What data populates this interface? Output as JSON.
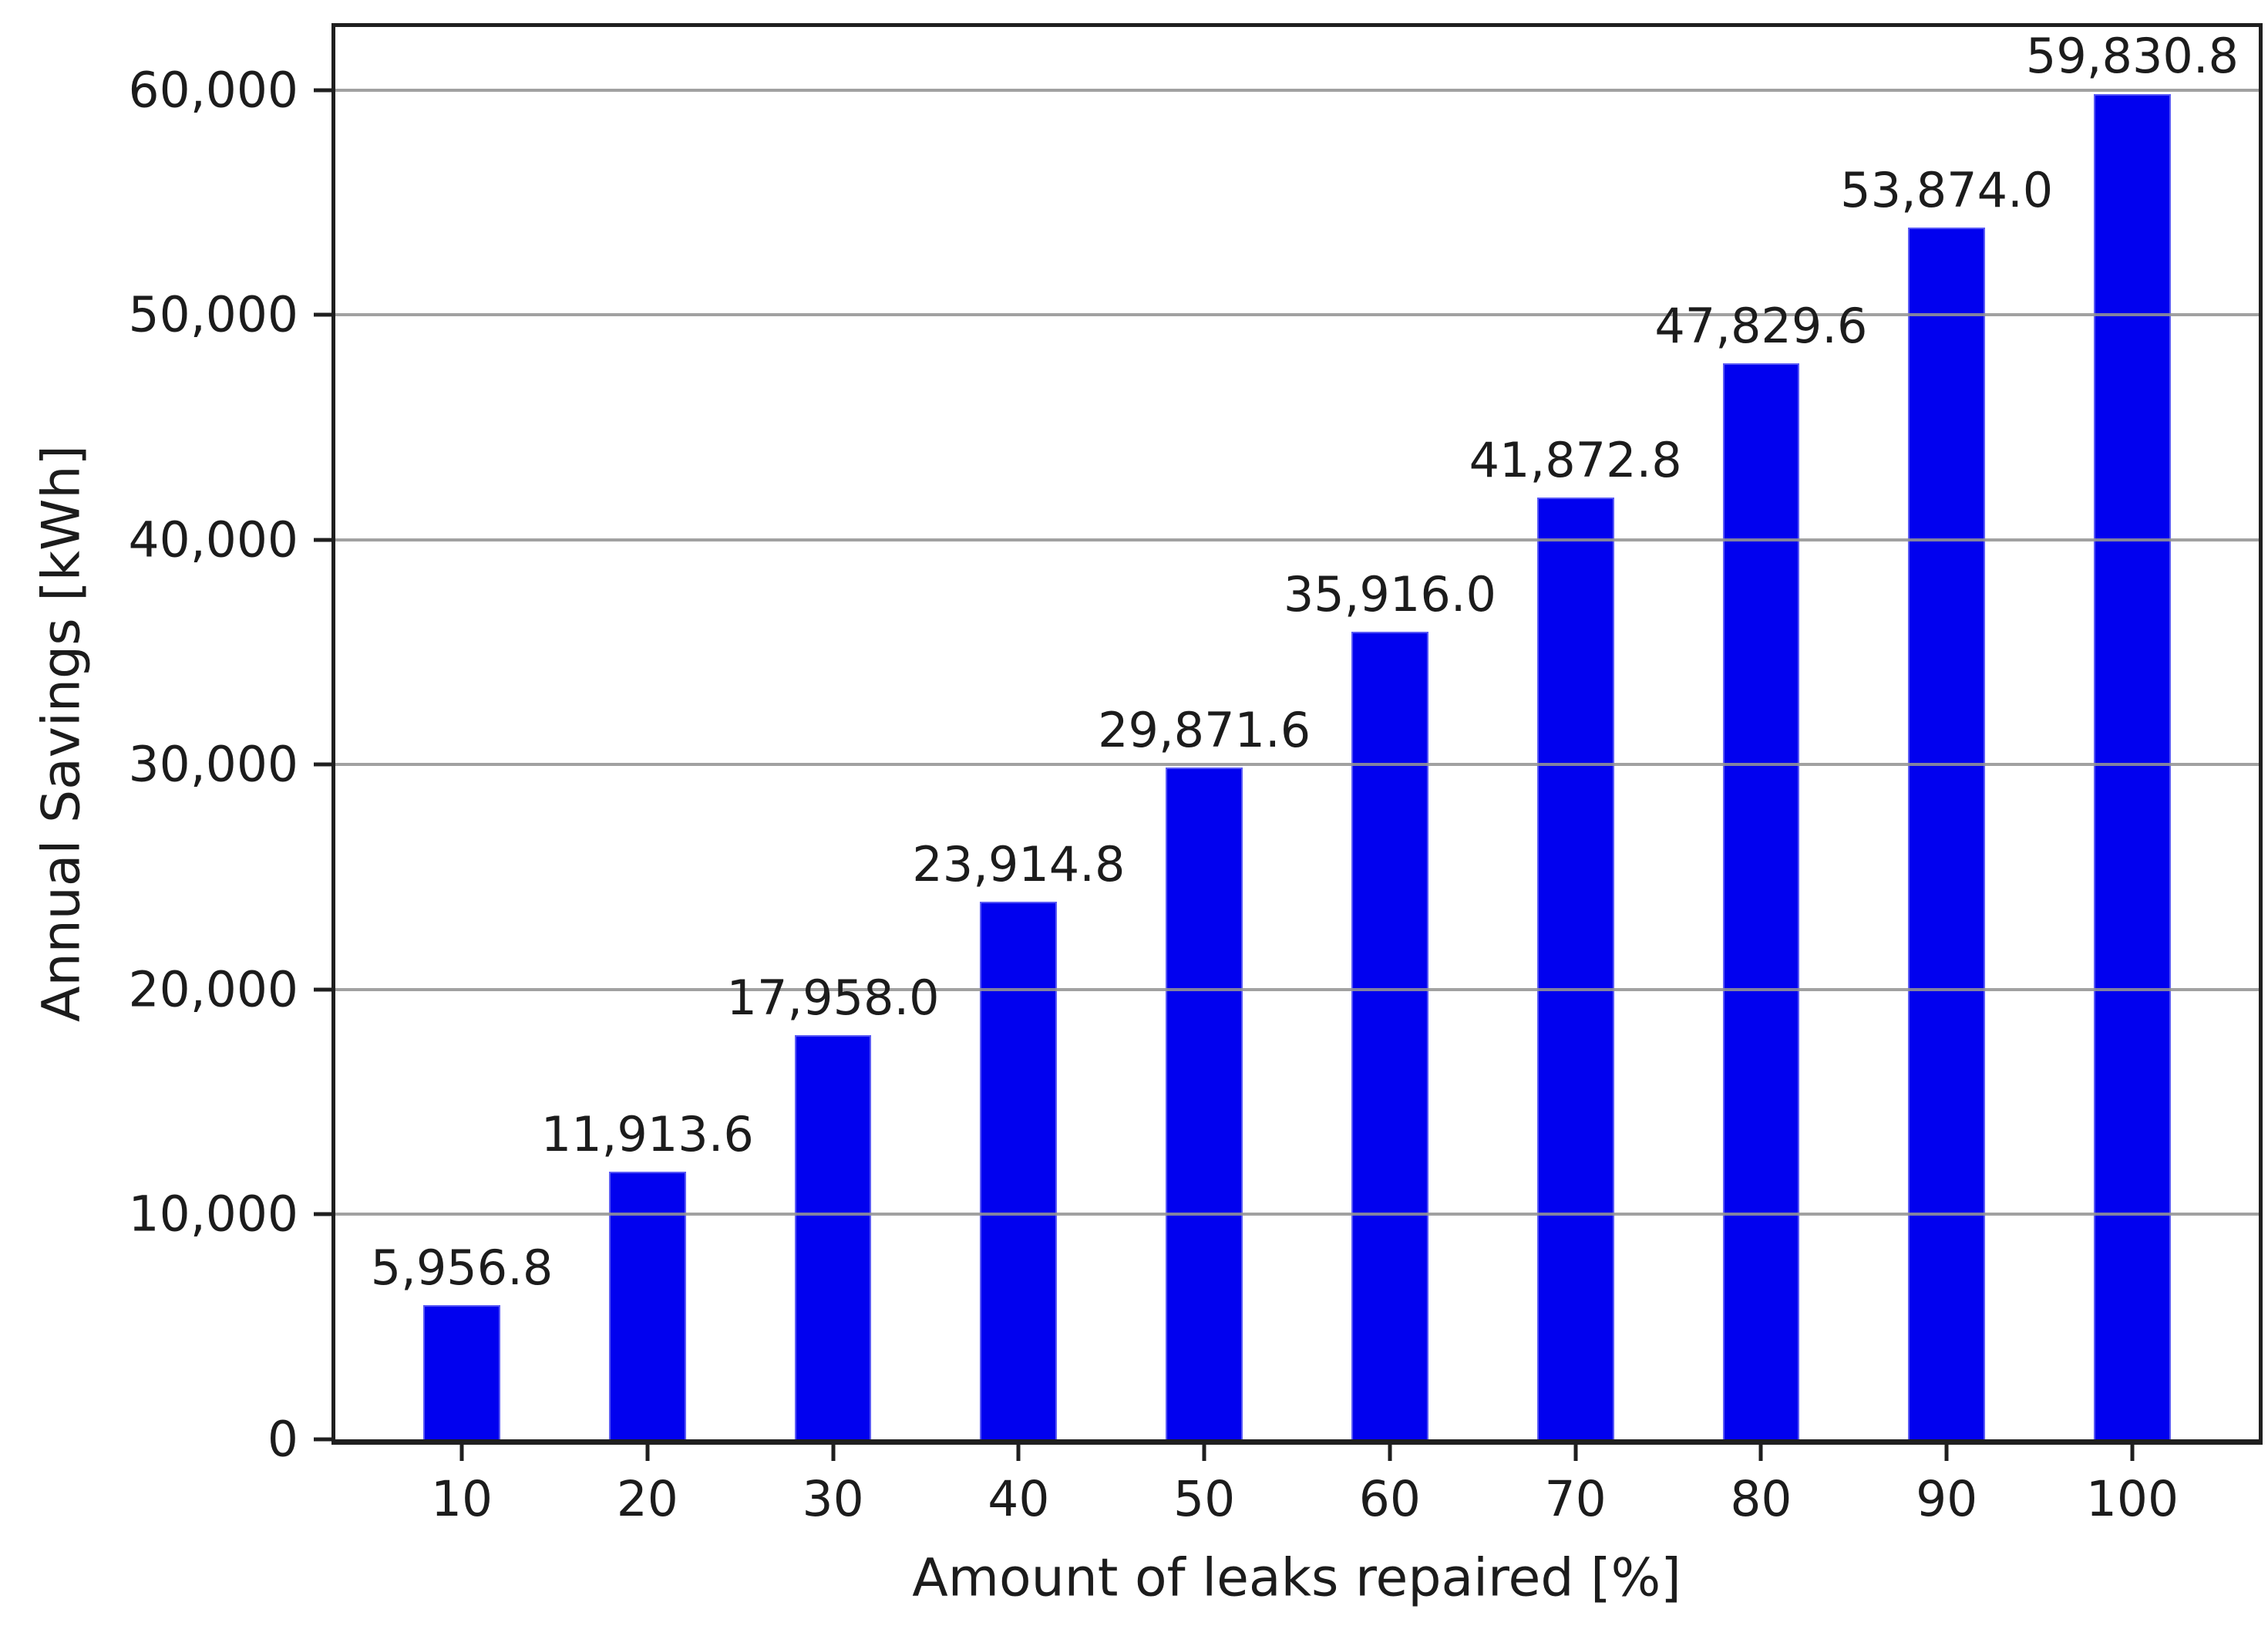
{
  "figure": {
    "background": "#ffffff"
  },
  "chart_data": {
    "type": "bar",
    "title": "",
    "xlabel": "Amount of leaks repaired [%]",
    "ylabel": "Annual Savings [kWh]",
    "categories": [
      "10",
      "20",
      "30",
      "40",
      "50",
      "60",
      "70",
      "80",
      "90",
      "100"
    ],
    "values": [
      5956.8,
      11913.6,
      17958.0,
      23914.8,
      29871.6,
      35916.0,
      41872.8,
      47829.6,
      53874.0,
      59830.8
    ],
    "value_labels": [
      "5,956.8",
      "11,913.6",
      "17,958.0",
      "23,914.8",
      "29,871.6",
      "35,916.0",
      "41,872.8",
      "47,829.6",
      "53,874.0",
      "59,830.8"
    ],
    "yticks": [
      {
        "value": 0,
        "label": "0"
      },
      {
        "value": 10000,
        "label": "10,000"
      },
      {
        "value": 20000,
        "label": "20,000"
      },
      {
        "value": 30000,
        "label": "30,000"
      },
      {
        "value": 40000,
        "label": "40,000"
      },
      {
        "value": 50000,
        "label": "50,000"
      },
      {
        "value": 60000,
        "label": "60,000"
      }
    ],
    "ylim": [
      0,
      62800
    ],
    "grid": "horizontal",
    "legend": "none",
    "bar_color": "#0101ef",
    "bar_edge_color": "#5a5af5",
    "grid_color": "#949494",
    "axis_color": "#1f1f1f",
    "text_color": "#1c1c1c"
  }
}
